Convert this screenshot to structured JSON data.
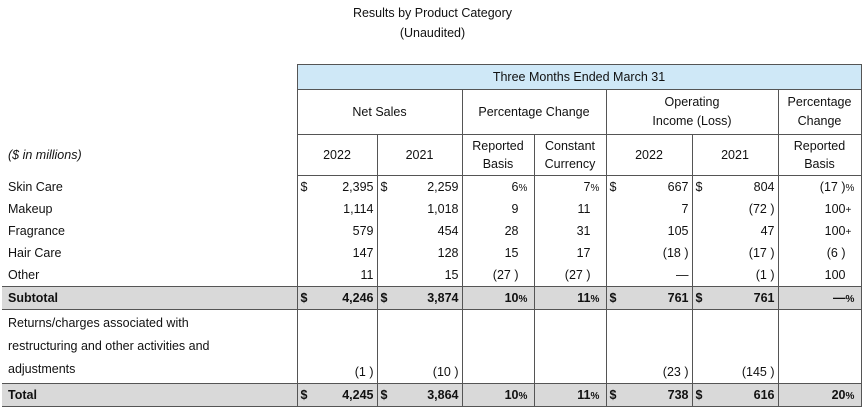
{
  "title": "Results by Product Category",
  "subtitle": "(Unaudited)",
  "period_header": "Three Months Ended March 31",
  "groups": {
    "net_sales": "Net Sales",
    "pct_change": "Percentage Change",
    "op_income_l1": "Operating",
    "op_income_l2": "Income (Loss)",
    "pct_change2_l1": "Percentage",
    "pct_change2_l2": "Change"
  },
  "columns": {
    "units": "($ in millions)",
    "y2022": "2022",
    "y2021": "2021",
    "reported_l1": "Reported",
    "reported_l2": "Basis",
    "constant_l1": "Constant",
    "constant_l2": "Currency"
  },
  "rows": [
    {
      "label": "Skin Care",
      "ns22_cur": "$",
      "ns22": "2,395",
      "ns21_cur": "$",
      "ns21": "2,259",
      "rep": "6",
      "rep_sfx": "%",
      "cc": "7",
      "cc_sfx": "%",
      "oi22_cur": "$",
      "oi22": "667",
      "oi21_cur": "$",
      "oi21": "804",
      "pc": "(17 )",
      "pc_sfx": "%"
    },
    {
      "label": "Makeup",
      "ns22_cur": "",
      "ns22": "1,114",
      "ns21_cur": "",
      "ns21": "1,018",
      "rep": "9",
      "rep_sfx": "",
      "cc": "11",
      "cc_sfx": "",
      "oi22_cur": "",
      "oi22": "7",
      "oi21_cur": "",
      "oi21": "(72 )",
      "pc": "100",
      "pc_sfx": "+"
    },
    {
      "label": "Fragrance",
      "ns22_cur": "",
      "ns22": "579",
      "ns21_cur": "",
      "ns21": "454",
      "rep": "28",
      "rep_sfx": "",
      "cc": "31",
      "cc_sfx": "",
      "oi22_cur": "",
      "oi22": "105",
      "oi21_cur": "",
      "oi21": "47",
      "pc": "100",
      "pc_sfx": "+"
    },
    {
      "label": "Hair Care",
      "ns22_cur": "",
      "ns22": "147",
      "ns21_cur": "",
      "ns21": "128",
      "rep": "15",
      "rep_sfx": "",
      "cc": "17",
      "cc_sfx": "",
      "oi22_cur": "",
      "oi22": "(18 )",
      "oi21_cur": "",
      "oi21": "(17 )",
      "pc": "(6 )",
      "pc_sfx": ""
    },
    {
      "label": "Other",
      "ns22_cur": "",
      "ns22": "11",
      "ns21_cur": "",
      "ns21": "15",
      "rep": "(27 )",
      "rep_sfx": "",
      "cc": "(27 )",
      "cc_sfx": "",
      "oi22_cur": "",
      "oi22": "—",
      "oi21_cur": "",
      "oi21": "(1 )",
      "pc": "100",
      "pc_sfx": ""
    }
  ],
  "subtotal": {
    "label": "Subtotal",
    "ns22_cur": "$",
    "ns22": "4,246",
    "ns21_cur": "$",
    "ns21": "3,874",
    "rep": "10",
    "rep_sfx": "%",
    "cc": "11",
    "cc_sfx": "%",
    "oi22_cur": "$",
    "oi22": "761",
    "oi21_cur": "$",
    "oi21": "761",
    "pc": "—",
    "pc_sfx": "%"
  },
  "returns": {
    "label_l1": "Returns/charges associated with",
    "label_l2": "restructuring and other activities and",
    "label_l3": "adjustments",
    "ns22": "(1 )",
    "ns21": "(10 )",
    "oi22": "(23 )",
    "oi21": "(145 )"
  },
  "total": {
    "label": "Total",
    "ns22_cur": "$",
    "ns22": "4,245",
    "ns21_cur": "$",
    "ns21": "3,864",
    "rep": "10",
    "rep_sfx": "%",
    "cc": "11",
    "cc_sfx": "%",
    "oi22_cur": "$",
    "oi22": "738",
    "oi21_cur": "$",
    "oi21": "616",
    "pc": "20",
    "pc_sfx": "%"
  }
}
